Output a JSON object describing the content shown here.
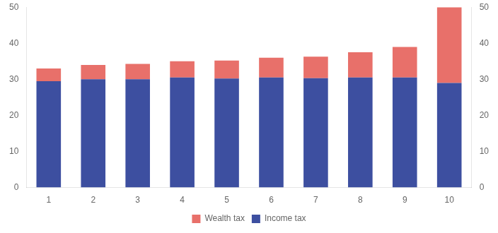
{
  "chart_data": {
    "type": "bar",
    "stacked": true,
    "categories": [
      1,
      2,
      3,
      4,
      5,
      6,
      7,
      8,
      9,
      10
    ],
    "series": [
      {
        "name": "Income tax",
        "color": "#3d4fa0",
        "values": [
          29.5,
          30.0,
          30.0,
          30.5,
          30.2,
          30.5,
          30.3,
          30.5,
          30.5,
          29.0
        ]
      },
      {
        "name": "Wealth tax",
        "color": "#e8706a",
        "values": [
          3.5,
          4.0,
          4.3,
          4.5,
          5.0,
          5.5,
          6.0,
          7.0,
          8.5,
          21.0
        ]
      }
    ],
    "ylim": [
      0,
      50
    ],
    "yticks": [
      0,
      10,
      20,
      30,
      40,
      50
    ],
    "y2lim": [
      0,
      50
    ],
    "y2ticks": [
      0,
      10,
      20,
      30,
      40,
      50
    ],
    "grid": false,
    "legend": "bottom"
  }
}
